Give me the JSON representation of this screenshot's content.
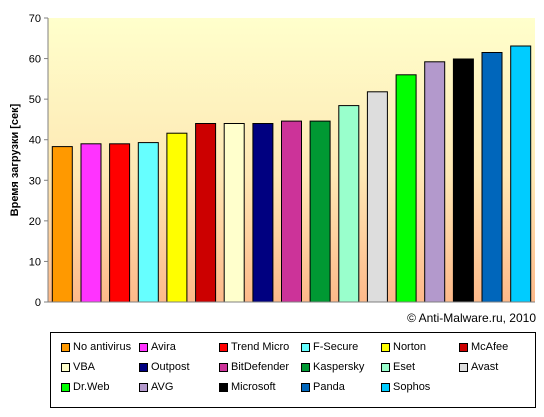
{
  "chart_data": {
    "type": "bar",
    "title": "",
    "xlabel": "",
    "ylabel": "Время загрузки [сек]",
    "ylim": [
      0,
      70
    ],
    "yticks": [
      0,
      10,
      20,
      30,
      40,
      50,
      60,
      70
    ],
    "grid": false,
    "legend_position": "bottom",
    "background": "gradient-orange-to-yellow",
    "categories": [
      "No antivirus",
      "Avira",
      "Trend Micro",
      "F-Secure",
      "Norton",
      "McAfee",
      "VBA",
      "Outpost",
      "BitDefender",
      "Kaspersky",
      "Eset",
      "Avast",
      "Dr.Web",
      "AVG",
      "Microsoft",
      "Panda",
      "Sophos"
    ],
    "values": [
      38.3,
      39.0,
      39.0,
      39.3,
      41.6,
      44.0,
      44.0,
      44.0,
      44.6,
      44.6,
      48.4,
      51.8,
      56.0,
      59.2,
      59.9,
      61.5,
      63.1
    ],
    "colors": [
      "#ff9900",
      "#ff33ff",
      "#ff0000",
      "#66ffff",
      "#ffff00",
      "#cc0000",
      "#ffffcc",
      "#000080",
      "#cc3399",
      "#009933",
      "#99ffcc",
      "#dddddd",
      "#00ff00",
      "#b399cc",
      "#000000",
      "#0066bb",
      "#00ccff"
    ]
  },
  "copyright": "© Anti-Malware.ru,  2010"
}
